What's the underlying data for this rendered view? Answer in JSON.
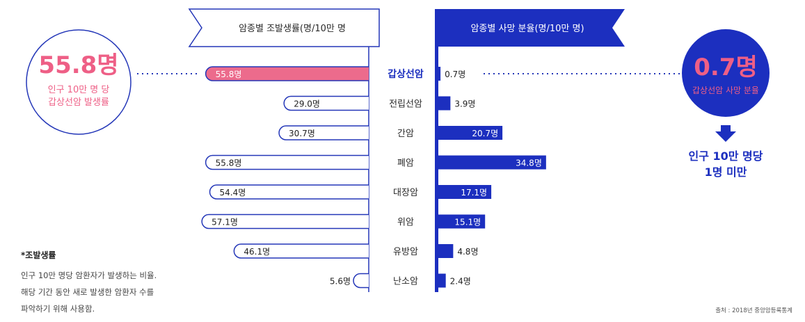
{
  "chart_data": {
    "type": "bar",
    "categories": [
      "갑상선암",
      "전립선암",
      "간암",
      "폐암",
      "대장암",
      "위암",
      "유방암",
      "난소암"
    ],
    "series": [
      {
        "name": "암종별 조발생률(명/10만 명",
        "values": [
          55.8,
          29.0,
          30.7,
          55.8,
          54.4,
          57.1,
          46.1,
          5.6
        ],
        "labels": [
          "55.8명",
          "29.0명",
          "30.7명",
          "55.8명",
          "54.4명",
          "57.1명",
          "46.1명",
          "5.6명"
        ]
      },
      {
        "name": "암종별 사망 분율(명/10만 명)",
        "values": [
          0.7,
          3.9,
          20.7,
          34.8,
          17.1,
          15.1,
          4.8,
          2.4
        ],
        "labels": [
          "0.7명",
          "3.9명",
          "20.7명",
          "34.8명",
          "17.1명",
          "15.1명",
          "4.8명",
          "2.4명"
        ]
      }
    ],
    "title_left": "암종별 조발생률(명/10만 명",
    "title_right": "암종별 사망 분율(명/10만 명)",
    "highlight_category": "갑상선암"
  },
  "callout_left": {
    "value": "55.8명",
    "line1": "인구 10만 명 당",
    "line2": "갑상선암 발생률"
  },
  "callout_right": {
    "value": "0.7명",
    "line1": "갑상선암 사망 분율",
    "summary1": "인구 10만 명당",
    "summary2": "1명 미만"
  },
  "note": {
    "title": "*조발생률",
    "lines": [
      "인구 10만 명당 암환자가 발생하는 비율.",
      "해당 기간 동안 새로 발생한 암환자 수를",
      "파악하기 위해 사용함."
    ]
  },
  "source": "출처 : 2018년 중앙암등록통계",
  "colors": {
    "navy": "#1c2fbf",
    "pink": "#ec6b8c",
    "pink_text": "#ee5f86",
    "outline": "#2437b8"
  }
}
